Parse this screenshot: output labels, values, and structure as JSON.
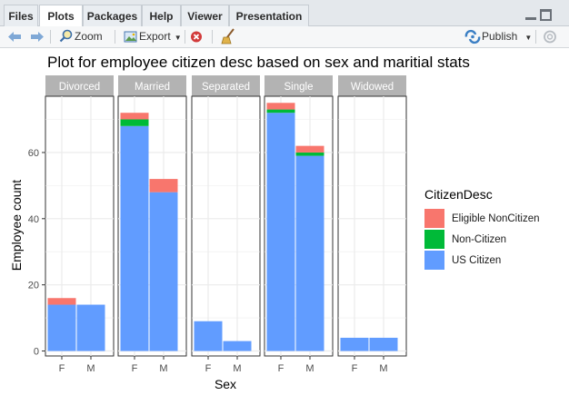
{
  "tabs": [
    {
      "label": "Files",
      "active": false
    },
    {
      "label": "Plots",
      "active": true
    },
    {
      "label": "Packages",
      "active": false
    },
    {
      "label": "Help",
      "active": false
    },
    {
      "label": "Viewer",
      "active": false
    },
    {
      "label": "Presentation",
      "active": false
    }
  ],
  "toolbar": {
    "zoom_label": "Zoom",
    "export_label": "Export",
    "publish_label": "Publish"
  },
  "colors": {
    "eligible": "#f8766d",
    "noncitizen": "#00ba38",
    "uscitizen": "#619cff",
    "strip": "#b3b3b3",
    "grid": "#ebebeb"
  },
  "chart_data": {
    "type": "bar",
    "stacked": true,
    "title": "Plot for employee citizen desc based on sex and maritial stats",
    "xlabel": "Sex",
    "ylabel": "Employee count",
    "ylim": [
      -1.5,
      77
    ],
    "yticks": [
      0,
      20,
      40,
      60
    ],
    "facets": [
      "Divorced",
      "Married",
      "Separated",
      "Single",
      "Widowed"
    ],
    "categories": [
      "F",
      "M"
    ],
    "legend": {
      "title": "CitizenDesc",
      "position": "right",
      "entries": [
        "Eligible NonCitizen",
        "Non-Citizen",
        "US Citizen"
      ]
    },
    "series": [
      {
        "name": "US Citizen",
        "color": "#619cff",
        "values": [
          [
            14,
            14
          ],
          [
            68,
            48
          ],
          [
            9,
            3
          ],
          [
            72,
            59
          ],
          [
            4,
            4
          ]
        ]
      },
      {
        "name": "Non-Citizen",
        "color": "#00ba38",
        "values": [
          [
            0,
            0
          ],
          [
            2,
            0
          ],
          [
            0,
            0
          ],
          [
            1,
            1
          ],
          [
            0,
            0
          ]
        ]
      },
      {
        "name": "Eligible NonCitizen",
        "color": "#f8766d",
        "values": [
          [
            2,
            0
          ],
          [
            2,
            4
          ],
          [
            0,
            0
          ],
          [
            2,
            2
          ],
          [
            0,
            0
          ]
        ]
      }
    ]
  }
}
